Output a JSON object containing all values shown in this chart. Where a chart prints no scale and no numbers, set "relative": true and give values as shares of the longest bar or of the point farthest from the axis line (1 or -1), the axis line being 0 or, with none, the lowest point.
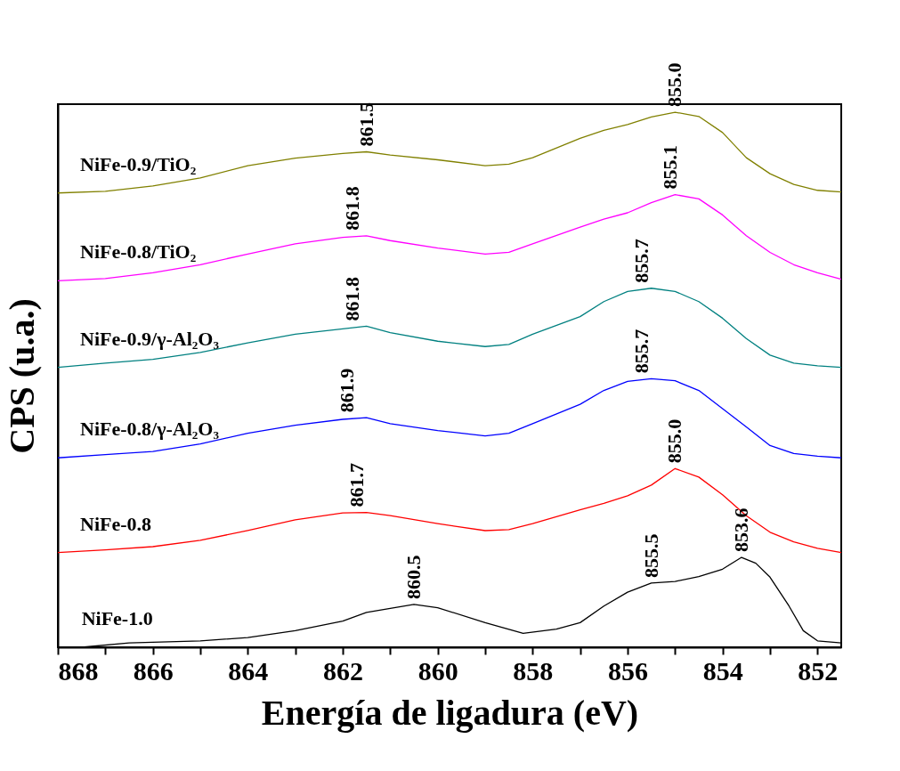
{
  "chart_data": {
    "type": "line",
    "relative": true,
    "xlabel": "Energía de ligadura (eV)",
    "ylabel": "CPS (u.a.)",
    "xlim": [
      868,
      851.5
    ],
    "xticks": [
      868,
      {
        "value": 867,
        "label": null
      },
      866,
      {
        "value": 865,
        "label": null
      },
      864,
      {
        "value": 863,
        "label": null
      },
      862,
      {
        "value": 861,
        "label": null
      },
      860,
      {
        "value": 859,
        "label": null
      },
      858,
      {
        "value": 857,
        "label": null
      },
      856,
      {
        "value": 855,
        "label": null
      },
      854,
      {
        "value": 853,
        "label": null
      },
      852
    ],
    "tick_labels": "x",
    "grid": false,
    "legend": false,
    "x": [
      868,
      867,
      866,
      865,
      864,
      863,
      862,
      861.5,
      861,
      860,
      859,
      858.5,
      858,
      857,
      856.5,
      856,
      855.5,
      855,
      854.5,
      854,
      853.5,
      853,
      852.5,
      852,
      851.5
    ],
    "series": [
      {
        "name": "NiFe-0.9/TiO₂",
        "color": "#808000",
        "values": [
          0.849,
          0.852,
          0.862,
          0.877,
          0.9,
          0.914,
          0.923,
          0.926,
          0.92,
          0.911,
          0.9,
          0.903,
          0.915,
          0.951,
          0.966,
          0.977,
          0.991,
          1.0,
          0.992,
          0.962,
          0.915,
          0.885,
          0.865,
          0.854,
          0.851
        ]
      },
      {
        "name": "NiFe-0.8/TiO₂",
        "color": "#ff00ff",
        "values": [
          0.685,
          0.689,
          0.7,
          0.715,
          0.735,
          0.754,
          0.766,
          0.769,
          0.76,
          0.746,
          0.735,
          0.738,
          0.754,
          0.785,
          0.8,
          0.812,
          0.831,
          0.846,
          0.838,
          0.808,
          0.769,
          0.738,
          0.715,
          0.7,
          0.688
        ]
      },
      {
        "name": "NiFe-0.9/γ-Al₂O₃",
        "color": "#008080",
        "values": [
          0.523,
          0.531,
          0.538,
          0.551,
          0.569,
          0.585,
          0.595,
          0.6,
          0.588,
          0.572,
          0.562,
          0.566,
          0.585,
          0.618,
          0.646,
          0.665,
          0.671,
          0.665,
          0.646,
          0.615,
          0.577,
          0.546,
          0.531,
          0.526,
          0.523
        ]
      },
      {
        "name": "NiFe-0.8/γ-Al₂O₃",
        "color": "#0000ff",
        "values": [
          0.354,
          0.36,
          0.366,
          0.38,
          0.4,
          0.415,
          0.426,
          0.429,
          0.418,
          0.405,
          0.395,
          0.4,
          0.418,
          0.454,
          0.48,
          0.497,
          0.502,
          0.498,
          0.48,
          0.446,
          0.412,
          0.377,
          0.362,
          0.357,
          0.354
        ]
      },
      {
        "name": "NiFe-0.8",
        "color": "#ff0000",
        "values": [
          0.177,
          0.182,
          0.188,
          0.2,
          0.218,
          0.238,
          0.251,
          0.252,
          0.246,
          0.231,
          0.218,
          0.22,
          0.231,
          0.257,
          0.269,
          0.283,
          0.303,
          0.334,
          0.318,
          0.285,
          0.246,
          0.215,
          0.197,
          0.185,
          0.177
        ]
      },
      {
        "name": "NiFe-1.0",
        "color": "#000000",
        "x": [
          867.5,
          866.5,
          865,
          864,
          863,
          862,
          861.5,
          860.5,
          860,
          859,
          858.2,
          857.5,
          857,
          856.5,
          856,
          855.5,
          855,
          854.5,
          854,
          853.6,
          853.3,
          853,
          852.6,
          852.3,
          852,
          851.5
        ],
        "values": [
          0,
          0.008,
          0.012,
          0.018,
          0.031,
          0.049,
          0.065,
          0.08,
          0.074,
          0.046,
          0.026,
          0.034,
          0.046,
          0.077,
          0.103,
          0.12,
          0.123,
          0.132,
          0.146,
          0.168,
          0.157,
          0.131,
          0.077,
          0.031,
          0.012,
          0.008
        ]
      }
    ],
    "annotations": [
      {
        "text": "861.5",
        "x": 861.5,
        "y": 0.926
      },
      {
        "text": "855.0",
        "x": 855.0,
        "y": 1.0
      },
      {
        "text": "861.8",
        "x": 861.8,
        "y": 0.769
      },
      {
        "text": "855.1",
        "x": 855.1,
        "y": 0.846
      },
      {
        "text": "861.8",
        "x": 861.8,
        "y": 0.6
      },
      {
        "text": "855.7",
        "x": 855.7,
        "y": 0.671
      },
      {
        "text": "861.9",
        "x": 861.9,
        "y": 0.429
      },
      {
        "text": "855.7",
        "x": 855.7,
        "y": 0.502
      },
      {
        "text": "861.7",
        "x": 861.7,
        "y": 0.252
      },
      {
        "text": "855.0",
        "x": 855.0,
        "y": 0.334
      },
      {
        "text": "860.5",
        "x": 860.5,
        "y": 0.08
      },
      {
        "text": "855.5",
        "x": 855.5,
        "y": 0.12
      },
      {
        "text": "853.6",
        "x": 853.6,
        "y": 0.168
      }
    ]
  }
}
